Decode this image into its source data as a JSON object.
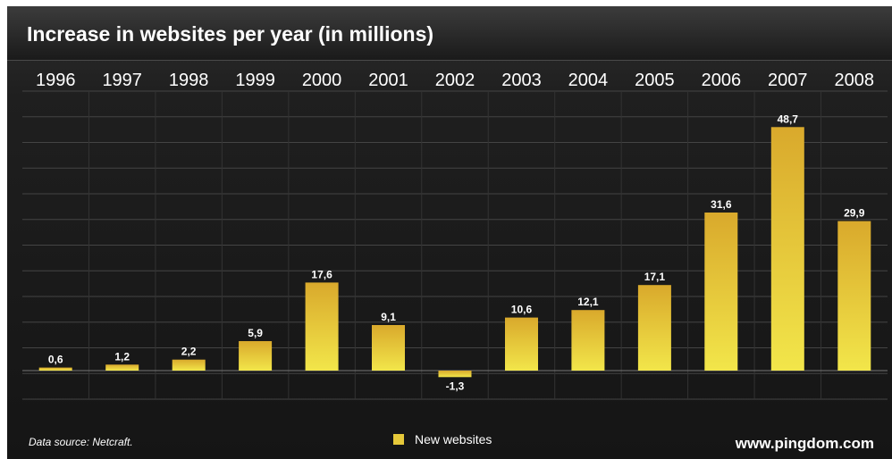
{
  "chart_data": {
    "type": "bar",
    "title": "Increase in websites per year (in millions)",
    "categories": [
      "1996",
      "1997",
      "1998",
      "1999",
      "2000",
      "2001",
      "2002",
      "2003",
      "2004",
      "2005",
      "2006",
      "2007",
      "2008"
    ],
    "series": [
      {
        "name": "New websites",
        "values": [
          0.6,
          1.2,
          2.2,
          5.9,
          17.6,
          9.1,
          -1.3,
          10.6,
          12.1,
          17.1,
          31.6,
          48.7,
          29.9
        ]
      }
    ],
    "data_labels": [
      "0,6",
      "1,2",
      "2,2",
      "5,9",
      "17,6",
      "9,1",
      "-1,3",
      "10,6",
      "12,1",
      "17,1",
      "31,6",
      "48,7",
      "29,9"
    ],
    "ylim": [
      -3,
      55
    ],
    "grid": true,
    "legend_position": "bottom-center",
    "bar_color": "#e6c93a"
  },
  "footer": {
    "source": "Data source: Netcraft.",
    "brand": "www.pingdom.com"
  }
}
